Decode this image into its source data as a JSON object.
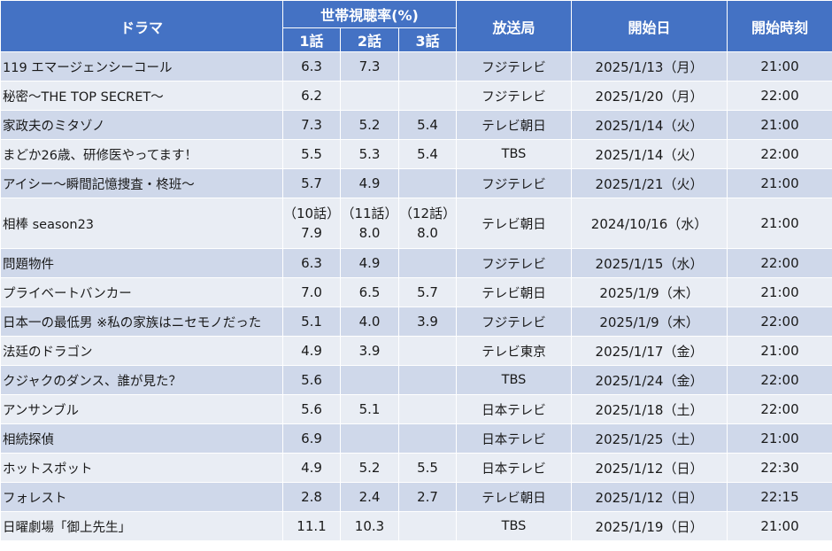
{
  "header": {
    "drama": "ドラマ",
    "rating_group": "世帯視聴率(%)",
    "ep1": "1話",
    "ep2": "2話",
    "ep3": "3話",
    "station": "放送局",
    "start_date": "開始日",
    "start_time": "開始時刻"
  },
  "rows": [
    {
      "title": "119 エマージェンシーコール",
      "ep1": "6.3",
      "ep2": "7.3",
      "ep3": "",
      "station": "フジテレビ",
      "date": "2025/1/13（月）",
      "time": "21:00"
    },
    {
      "title": "秘密～THE TOP SECRET～",
      "ep1": "6.2",
      "ep2": "",
      "ep3": "",
      "station": "フジテレビ",
      "date": "2025/1/20（月）",
      "time": "22:00"
    },
    {
      "title": "家政夫のミタゾノ",
      "ep1": "7.3",
      "ep2": "5.2",
      "ep3": "5.4",
      "station": "テレビ朝日",
      "date": "2025/1/14（火）",
      "time": "21:00"
    },
    {
      "title": "まどか26歳、研修医やってます！",
      "ep1": "5.5",
      "ep2": "5.3",
      "ep3": "5.4",
      "station": "TBS",
      "date": "2025/1/14（火）",
      "time": "22:00"
    },
    {
      "title": "アイシー～瞬間記憶捜査・柊班～",
      "ep1": "5.7",
      "ep2": "4.9",
      "ep3": "",
      "station": "フジテレビ",
      "date": "2025/1/21（火）",
      "time": "21:00"
    },
    {
      "title": "相棒 season23",
      "ep1_label": "（10話）",
      "ep1": "7.9",
      "ep2_label": "（11話）",
      "ep2": "8.0",
      "ep3_label": "（12話）",
      "ep3": "8.0",
      "station": "テレビ朝日",
      "date": "2024/10/16（水）",
      "time": "21:00"
    },
    {
      "title": "問題物件",
      "ep1": "6.3",
      "ep2": "4.9",
      "ep3": "",
      "station": "フジテレビ",
      "date": "2025/1/15（水）",
      "time": "22:00"
    },
    {
      "title": "プライベートバンカー",
      "ep1": "7.0",
      "ep2": "6.5",
      "ep3": "5.7",
      "station": "テレビ朝日",
      "date": "2025/1/9（木）",
      "time": "21:00"
    },
    {
      "title": "日本一の最低男 ※私の家族はニセモノだった",
      "ep1": "5.1",
      "ep2": "4.0",
      "ep3": "3.9",
      "station": "フジテレビ",
      "date": "2025/1/9（木）",
      "time": "22:00"
    },
    {
      "title": "法廷のドラゴン",
      "ep1": "4.9",
      "ep2": "3.9",
      "ep3": "",
      "station": "テレビ東京",
      "date": "2025/1/17（金）",
      "time": "21:00"
    },
    {
      "title": "クジャクのダンス、誰が見た？",
      "ep1": "5.6",
      "ep2": "",
      "ep3": "",
      "station": "TBS",
      "date": "2025/1/24（金）",
      "time": "22:00"
    },
    {
      "title": "アンサンブル",
      "ep1": "5.6",
      "ep2": "5.1",
      "ep3": "",
      "station": "日本テレビ",
      "date": "2025/1/18（土）",
      "time": "22:00"
    },
    {
      "title": "相続探偵",
      "ep1": "6.9",
      "ep2": "",
      "ep3": "",
      "station": "日本テレビ",
      "date": "2025/1/25（土）",
      "time": "21:00"
    },
    {
      "title": "ホットスポット",
      "ep1": "4.9",
      "ep2": "5.2",
      "ep3": "5.5",
      "station": "日本テレビ",
      "date": "2025/1/12（日）",
      "time": "22:30"
    },
    {
      "title": "フォレスト",
      "ep1": "2.8",
      "ep2": "2.4",
      "ep3": "2.7",
      "station": "テレビ朝日",
      "date": "2025/1/12（日）",
      "time": "22:15"
    },
    {
      "title": "日曜劇場「御上先生」",
      "ep1": "11.1",
      "ep2": "10.3",
      "ep3": "",
      "station": "TBS",
      "date": "2025/1/19（日）",
      "time": "21:00"
    }
  ],
  "colors": {
    "header_bg": "#4472c4",
    "row_odd": "#cfd8ea",
    "row_even": "#e9edf4"
  }
}
